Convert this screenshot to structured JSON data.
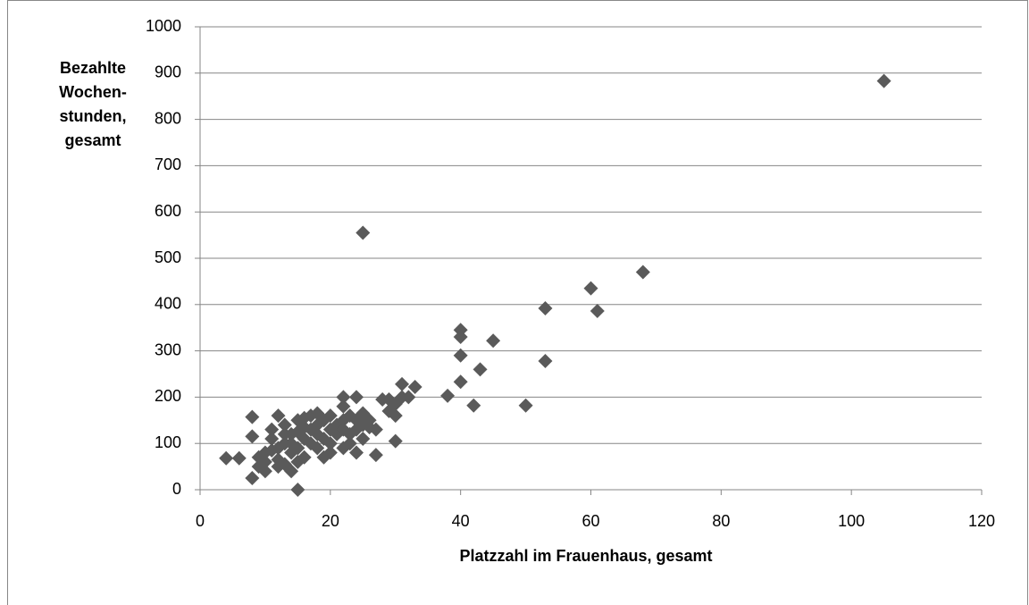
{
  "chart_data": {
    "type": "scatter",
    "xlabel": "Platzzahl im Frauenhaus, gesamt",
    "ylabel_lines": [
      "Bezahlte",
      "Wochen-",
      "stunden,",
      "gesamt"
    ],
    "color": "#5a5a5a",
    "xlim": [
      0,
      120
    ],
    "xticks": [
      0,
      20,
      40,
      60,
      80,
      100,
      120
    ],
    "ylim": [
      0,
      1000
    ],
    "yticks": [
      0,
      100,
      200,
      300,
      400,
      500,
      600,
      700,
      800,
      900,
      1000
    ],
    "grid": true,
    "x": [
      105,
      25,
      68,
      60,
      53,
      61,
      45,
      40,
      40,
      40,
      53,
      43,
      40,
      33,
      31,
      38,
      32,
      42,
      50,
      30,
      27,
      15,
      4,
      6,
      8,
      8,
      8,
      9,
      10,
      10,
      11,
      11,
      12,
      12,
      13,
      13,
      14,
      14,
      14,
      15,
      15,
      15,
      16,
      16,
      16,
      17,
      17,
      17,
      18,
      18,
      18,
      18,
      19,
      19,
      19,
      20,
      20,
      20,
      20,
      21,
      21,
      22,
      22,
      22,
      22,
      22,
      23,
      23,
      23,
      24,
      24,
      24,
      24,
      25,
      25,
      25,
      26,
      26,
      27,
      28,
      29,
      29,
      30,
      30,
      31,
      12,
      13,
      9,
      10,
      11,
      12,
      14,
      16,
      13,
      15
    ],
    "y": [
      883,
      555,
      470,
      435,
      392,
      386,
      322,
      345,
      330,
      290,
      278,
      260,
      233,
      222,
      228,
      203,
      200,
      182,
      182,
      105,
      75,
      0,
      68,
      68,
      25,
      157,
      115,
      70,
      40,
      60,
      85,
      130,
      160,
      50,
      100,
      140,
      40,
      80,
      120,
      150,
      90,
      60,
      155,
      110,
      70,
      130,
      100,
      160,
      165,
      140,
      120,
      90,
      70,
      150,
      110,
      160,
      130,
      100,
      80,
      140,
      120,
      200,
      180,
      150,
      130,
      90,
      160,
      120,
      100,
      200,
      150,
      130,
      80,
      165,
      140,
      110,
      150,
      135,
      130,
      195,
      195,
      170,
      185,
      160,
      200,
      65,
      55,
      50,
      80,
      110,
      90,
      100,
      135,
      120,
      125
    ]
  }
}
